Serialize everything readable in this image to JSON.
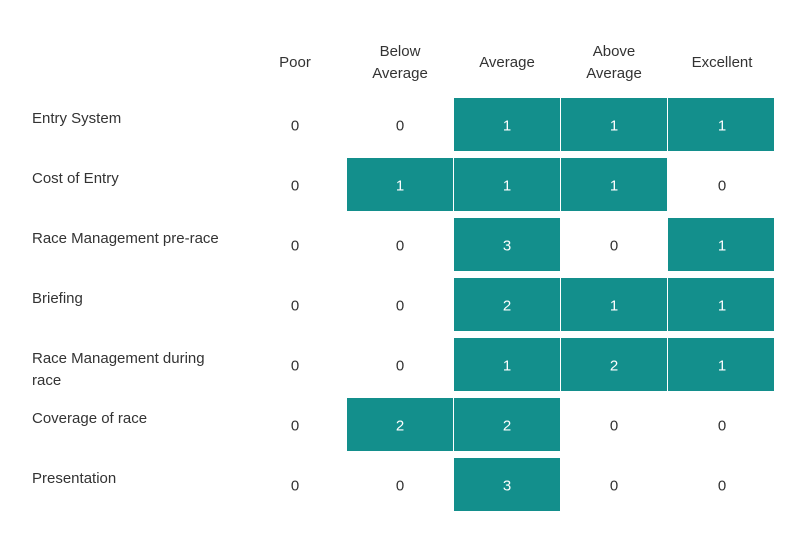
{
  "chart_data": {
    "type": "heatmap",
    "title": "",
    "columns": [
      [
        "Poor"
      ],
      [
        "Below",
        "Average"
      ],
      [
        "Average"
      ],
      [
        "Above",
        "Average"
      ],
      [
        "Excellent"
      ]
    ],
    "rows": [
      {
        "label": [
          "Entry System"
        ],
        "values": [
          0,
          0,
          1,
          1,
          1
        ]
      },
      {
        "label": [
          "Cost of Entry"
        ],
        "values": [
          0,
          1,
          1,
          1,
          0
        ]
      },
      {
        "label": [
          "Race Management pre-race"
        ],
        "values": [
          0,
          0,
          3,
          0,
          1
        ]
      },
      {
        "label": [
          "Briefing"
        ],
        "values": [
          0,
          0,
          2,
          1,
          1
        ]
      },
      {
        "label": [
          "Race Management during",
          "race"
        ],
        "values": [
          0,
          0,
          1,
          2,
          1
        ]
      },
      {
        "label": [
          "Coverage of race"
        ],
        "values": [
          0,
          2,
          2,
          0,
          0
        ]
      },
      {
        "label": [
          "Presentation"
        ],
        "values": [
          0,
          0,
          3,
          0,
          0
        ]
      }
    ],
    "colors": {
      "filled": "#138f8c",
      "filled_text": "#ffffff",
      "empty_text": "#333333"
    }
  }
}
